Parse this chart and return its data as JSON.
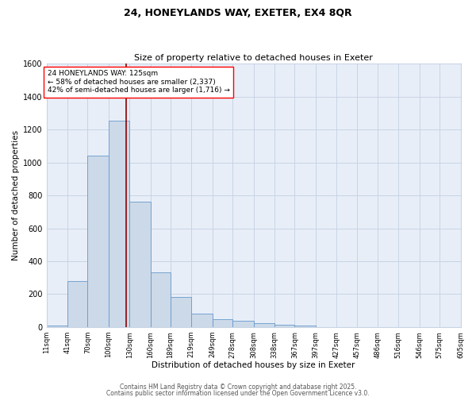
{
  "title1": "24, HONEYLANDS WAY, EXETER, EX4 8QR",
  "title2": "Size of property relative to detached houses in Exeter",
  "xlabel": "Distribution of detached houses by size in Exeter",
  "ylabel": "Number of detached properties",
  "bar_color": "#ccd9e8",
  "bar_edge_color": "#6699cc",
  "vline_color": "#8b0000",
  "vline_x": 125,
  "annotation_text": "24 HONEYLANDS WAY: 125sqm\n← 58% of detached houses are smaller (2,337)\n42% of semi-detached houses are larger (1,716) →",
  "bins": [
    11,
    41,
    70,
    100,
    130,
    160,
    189,
    219,
    249,
    278,
    308,
    338,
    367,
    397,
    427,
    457,
    486,
    516,
    546,
    575,
    605
  ],
  "counts": [
    10,
    280,
    1040,
    1255,
    760,
    335,
    185,
    80,
    50,
    40,
    25,
    15,
    8,
    1,
    0,
    2,
    0,
    1,
    0,
    1
  ],
  "ylim": [
    0,
    1600
  ],
  "yticks": [
    0,
    200,
    400,
    600,
    800,
    1000,
    1200,
    1400,
    1600
  ],
  "xtick_labels": [
    "11sqm",
    "41sqm",
    "70sqm",
    "100sqm",
    "130sqm",
    "160sqm",
    "189sqm",
    "219sqm",
    "249sqm",
    "278sqm",
    "308sqm",
    "338sqm",
    "367sqm",
    "397sqm",
    "427sqm",
    "457sqm",
    "486sqm",
    "516sqm",
    "546sqm",
    "575sqm",
    "605sqm"
  ],
  "footer1": "Contains HM Land Registry data © Crown copyright and database right 2025.",
  "footer2": "Contains public sector information licensed under the Open Government Licence v3.0.",
  "grid_color": "#c8d4e4",
  "bg_color": "#e8eef8",
  "title1_fontsize": 9,
  "title2_fontsize": 8,
  "xlabel_fontsize": 7.5,
  "ylabel_fontsize": 7.5,
  "xtick_fontsize": 6,
  "ytick_fontsize": 7,
  "annot_fontsize": 6.5,
  "footer_fontsize": 5.5
}
